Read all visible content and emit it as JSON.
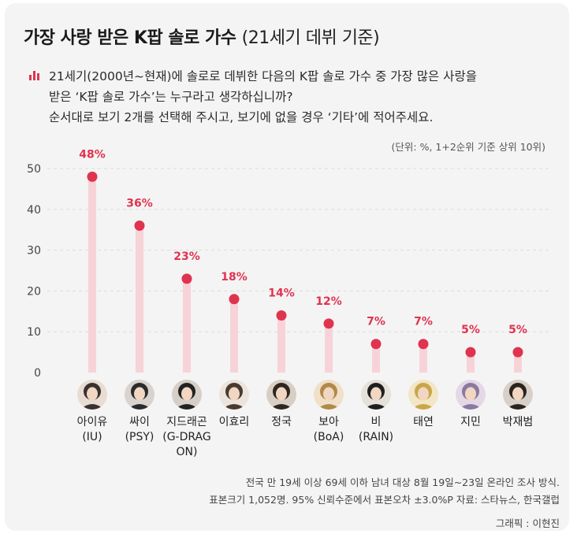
{
  "title": "가장 사랑 받은 K팝 솔로 가수",
  "title_sub": "(21세기 데뷔 기준)",
  "question_lines": [
    "21세기(2000년~현재)에 솔로로 데뷔한 다음의 K팝 솔로 가수 중 가장 많은 사랑을",
    "받은 ‘K팝 솔로 가수’는 누구라고 생각하십니까?",
    "순서대로 보기 2개를 선택해 주시고, 보기에 없을 경우 ‘기타’에 적어주세요."
  ],
  "icon": "bar-chart-icon",
  "unit_note": "(단위: %, 1+2순위 기준 상위 10위)",
  "colors": {
    "accent": "#e0334f",
    "stem": "#f7d3d8",
    "grid": "#dcdcdc"
  },
  "chart_data": {
    "type": "lollipop",
    "categories": [
      "아이유 (IU)",
      "싸이 (PSY)",
      "지드래곤 (G-DRAGON)",
      "이효리",
      "정국",
      "보아 (BoA)",
      "비 (RAIN)",
      "태연",
      "지민",
      "박재범"
    ],
    "category_lines": [
      [
        "아이유",
        "(IU)"
      ],
      [
        "싸이",
        "(PSY)"
      ],
      [
        "지드래곤",
        "(G-DRAG",
        "ON)"
      ],
      [
        "이효리"
      ],
      [
        "정국"
      ],
      [
        "보아",
        "(BoA)"
      ],
      [
        "비",
        "(RAIN)"
      ],
      [
        "태연"
      ],
      [
        "지민"
      ],
      [
        "박재범"
      ]
    ],
    "values": [
      48,
      36,
      23,
      18,
      14,
      12,
      7,
      7,
      5,
      5
    ],
    "value_labels": [
      "48%",
      "36%",
      "23%",
      "18%",
      "14%",
      "12%",
      "7%",
      "7%",
      "5%",
      "5%"
    ],
    "yticks": [
      "0",
      "10",
      "20",
      "30",
      "40",
      "50"
    ],
    "ylim": [
      0,
      50
    ],
    "grid": true
  },
  "footer": {
    "line1": "전국 만 19세 이상 69세 이하 남녀 대상 8월 19일~23일 온라인 조사 방식.",
    "line2": "표본크기 1,052명. 95% 신뢰수준에서 표본오차 ±3.0%P 자료: 스타뉴스, 한국갤럽",
    "credit": "그래픽 : 이현진"
  }
}
